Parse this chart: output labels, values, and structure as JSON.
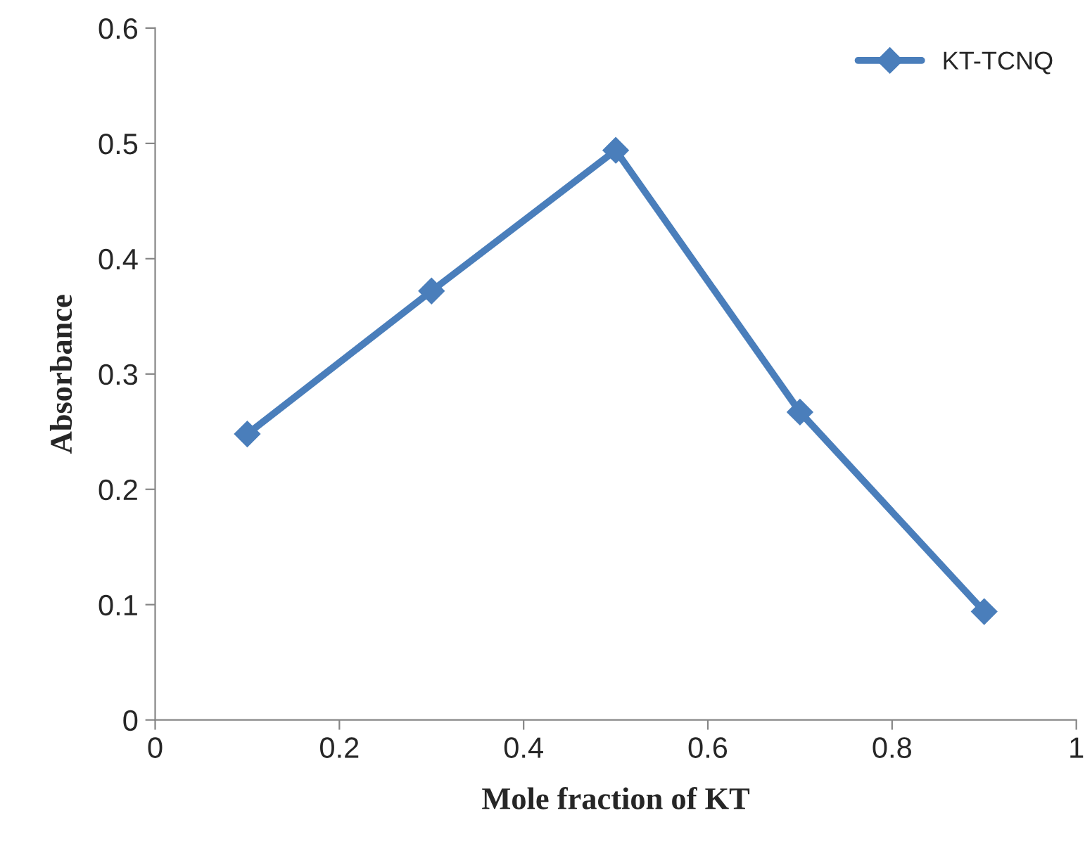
{
  "chart_data": {
    "type": "line",
    "xlabel": "Mole fraction of KT",
    "ylabel": "Absorbance",
    "x": [
      0.1,
      0.3,
      0.5,
      0.7,
      0.9
    ],
    "series": [
      {
        "name": "KT-TCNQ",
        "color": "#4a7ebb",
        "values": [
          0.248,
          0.372,
          0.494,
          0.267,
          0.094
        ]
      }
    ],
    "xlim": [
      0,
      1
    ],
    "xticks": [
      0,
      0.2,
      0.4,
      0.6,
      0.8,
      1
    ],
    "ylim": [
      0,
      0.6
    ],
    "yticks": [
      0,
      0.1,
      0.2,
      0.3,
      0.4,
      0.5,
      0.6
    ],
    "marker": "diamond",
    "line_style": "solid",
    "legend": "top right",
    "grid": false
  }
}
